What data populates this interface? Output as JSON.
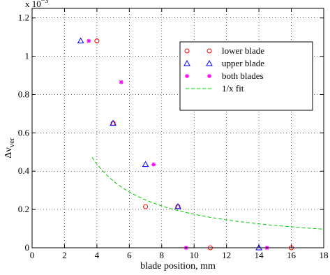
{
  "chart_data": {
    "type": "scatter",
    "xlabel": "blade position, mm",
    "ylabel_main": "Δν",
    "ylabel_sub": "ver",
    "y_exponent_label": "x 10",
    "y_exponent_power": "−3",
    "xlim": [
      0,
      18
    ],
    "ylim": [
      0,
      1.25
    ],
    "x_ticks": [
      0,
      2,
      4,
      6,
      8,
      10,
      12,
      14,
      16,
      18
    ],
    "x_tick_labels": [
      "0",
      "2",
      "4",
      "6",
      "8",
      "10",
      "12",
      "14",
      "16",
      "18"
    ],
    "y_ticks": [
      0,
      0.2,
      0.4,
      0.6,
      0.8,
      1.0,
      1.2
    ],
    "y_tick_labels": [
      "0",
      "0.2",
      "0.4",
      "0.6",
      "0.8",
      "1",
      "1.2"
    ],
    "grid": true,
    "legend_position": "top-right",
    "series": [
      {
        "name": "lower blade",
        "marker": "circle",
        "color": "#ff0000",
        "points": [
          [
            4,
            1.08
          ],
          [
            5,
            0.65
          ],
          [
            7,
            0.215
          ],
          [
            9,
            0.215
          ],
          [
            11,
            0
          ],
          [
            16,
            0
          ]
        ]
      },
      {
        "name": "upper blade",
        "marker": "triangle",
        "color": "#0000ff",
        "points": [
          [
            3,
            1.08
          ],
          [
            5,
            0.65
          ],
          [
            7,
            0.435
          ],
          [
            9,
            0.215
          ],
          [
            14,
            0
          ]
        ]
      },
      {
        "name": "both blades",
        "marker": "star",
        "color": "#ff00ff",
        "points": [
          [
            3.5,
            1.08
          ],
          [
            5.5,
            0.865
          ],
          [
            7.5,
            0.435
          ],
          [
            9.5,
            0
          ],
          [
            14.5,
            0
          ]
        ]
      },
      {
        "name": "1/x fit",
        "marker": "dashed-line",
        "color": "#00cc00",
        "fit": {
          "form": "a/x",
          "a": 1.75,
          "x_start": 3.7,
          "x_end": 18
        }
      }
    ]
  }
}
